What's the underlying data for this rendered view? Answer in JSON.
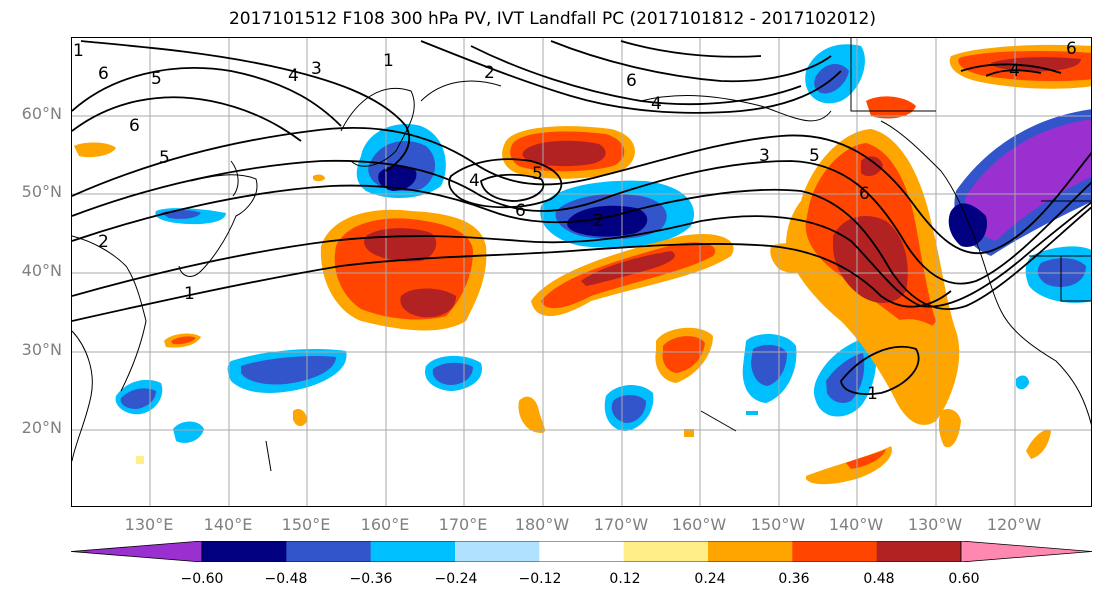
{
  "title": "2017101512 F108 300 hPa PV, IVT Landfall PC (2017101812 - 2017102012)",
  "lat_labels": [
    "60°N",
    "50°N",
    "40°N",
    "30°N",
    "20°N"
  ],
  "lon_labels": [
    "130°E",
    "140°E",
    "150°E",
    "160°E",
    "170°E",
    "180°W",
    "170°W",
    "160°W",
    "150°W",
    "140°W",
    "130°W",
    "120°W"
  ],
  "contour_labels": [
    "6",
    "5",
    "4",
    "3",
    "1",
    "2",
    "6",
    "5",
    "6",
    "4",
    "5",
    "6",
    "2",
    "1",
    "4",
    "6",
    "3",
    "5",
    "6",
    "1",
    "4",
    "2",
    "1"
  ],
  "colorbar": {
    "colors": [
      "#9b30d0",
      "#000080",
      "#3355cc",
      "#00bfff",
      "#b0e2ff",
      "#ffffff",
      "#ffee88",
      "#ffa500",
      "#ff4500",
      "#b22222",
      "#ff88b0"
    ],
    "tick_labels": [
      "−0.60",
      "−0.48",
      "−0.36",
      "−0.24",
      "−0.12",
      "0.12",
      "0.24",
      "0.36",
      "0.48",
      "0.60"
    ]
  }
}
